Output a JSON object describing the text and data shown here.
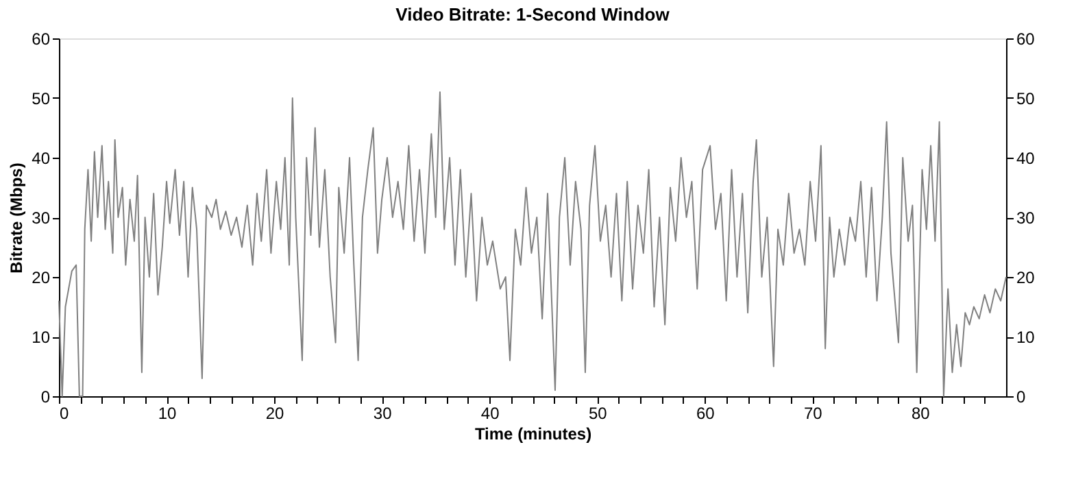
{
  "chart_data": {
    "type": "line",
    "title": "Video Bitrate: 1-Second Window",
    "xlabel": "Time (minutes)",
    "ylabel": "Bitrate (Mbps)",
    "xlim": [
      0,
      88
    ],
    "ylim": [
      0,
      60
    ],
    "y2lim": [
      0,
      60
    ],
    "xticks": [
      0,
      {
        "value": 2,
        "label": null
      },
      {
        "value": 4,
        "label": null
      },
      {
        "value": 6,
        "label": null
      },
      {
        "value": 8,
        "label": null
      },
      10,
      {
        "value": 12,
        "label": null
      },
      {
        "value": 14,
        "label": null
      },
      {
        "value": 16,
        "label": null
      },
      {
        "value": 18,
        "label": null
      },
      20,
      {
        "value": 22,
        "label": null
      },
      {
        "value": 24,
        "label": null
      },
      {
        "value": 26,
        "label": null
      },
      {
        "value": 28,
        "label": null
      },
      30,
      {
        "value": 32,
        "label": null
      },
      {
        "value": 34,
        "label": null
      },
      {
        "value": 36,
        "label": null
      },
      {
        "value": 38,
        "label": null
      },
      40,
      {
        "value": 42,
        "label": null
      },
      {
        "value": 44,
        "label": null
      },
      {
        "value": 46,
        "label": null
      },
      {
        "value": 48,
        "label": null
      },
      50,
      {
        "value": 52,
        "label": null
      },
      {
        "value": 54,
        "label": null
      },
      {
        "value": 56,
        "label": null
      },
      {
        "value": 58,
        "label": null
      },
      60,
      {
        "value": 62,
        "label": null
      },
      {
        "value": 64,
        "label": null
      },
      {
        "value": 66,
        "label": null
      },
      {
        "value": 68,
        "label": null
      },
      70,
      {
        "value": 72,
        "label": null
      },
      {
        "value": 74,
        "label": null
      },
      {
        "value": 76,
        "label": null
      },
      {
        "value": 78,
        "label": null
      },
      80,
      {
        "value": 82,
        "label": null
      },
      {
        "value": 84,
        "label": null
      },
      {
        "value": 86,
        "label": null
      }
    ],
    "yticks": [
      0,
      10,
      20,
      30,
      40,
      50,
      60
    ],
    "y2ticks": [
      0,
      10,
      20,
      30,
      40,
      50,
      60
    ],
    "grid": false,
    "legend": false,
    "marker": "none",
    "line_style": "solid",
    "series": [
      {
        "color": "#808080",
        "x": [
          0,
          0.3,
          0.6,
          0.9,
          1.2,
          1.6,
          1.9,
          2.2,
          2.4,
          2.7,
          3.0,
          3.3,
          3.6,
          4.0,
          4.3,
          4.6,
          5.0,
          5.2,
          5.5,
          5.9,
          6.2,
          6.6,
          7.0,
          7.3,
          7.7,
          8.0,
          8.4,
          8.8,
          9.2,
          9.6,
          10.0,
          10.3,
          10.8,
          11.2,
          11.6,
          12.0,
          12.4,
          12.8,
          13.3,
          13.7,
          14.2,
          14.6,
          15.0,
          15.5,
          16.0,
          16.5,
          17.0,
          17.5,
          18.0,
          18.4,
          18.8,
          19.3,
          19.7,
          20.2,
          20.6,
          21.0,
          21.4,
          21.7,
          22.0,
          22.6,
          23.0,
          23.4,
          23.8,
          24.2,
          24.7,
          25.2,
          25.7,
          26.0,
          26.5,
          27.0,
          27.4,
          27.8,
          28.2,
          28.7,
          29.2,
          29.6,
          30.0,
          30.5,
          31.0,
          31.5,
          32.0,
          32.5,
          33.0,
          33.5,
          34.0,
          34.6,
          35.0,
          35.4,
          35.8,
          36.3,
          36.8,
          37.3,
          37.8,
          38.3,
          38.8,
          39.3,
          39.8,
          40.3,
          41.0,
          41.5,
          41.9,
          42.4,
          42.9,
          43.4,
          43.9,
          44.4,
          44.9,
          45.4,
          46.1,
          46.5,
          47.0,
          47.5,
          48.0,
          48.5,
          48.9,
          49.3,
          49.8,
          50.3,
          50.8,
          51.3,
          51.8,
          52.3,
          52.8,
          53.3,
          53.8,
          54.3,
          54.8,
          55.3,
          55.8,
          56.3,
          56.8,
          57.3,
          57.8,
          58.3,
          58.8,
          59.3,
          59.8,
          60.5,
          61.0,
          61.5,
          62.0,
          62.5,
          63.0,
          63.5,
          64.0,
          64.5,
          64.8,
          65.3,
          65.8,
          66.4,
          66.8,
          67.3,
          67.8,
          68.3,
          68.8,
          69.3,
          69.8,
          70.3,
          70.8,
          71.2,
          71.6,
          72.0,
          72.5,
          73.0,
          73.5,
          74.0,
          74.5,
          75.0,
          75.5,
          76.0,
          76.5,
          76.9,
          77.3,
          78.0,
          78.4,
          78.9,
          79.3,
          79.7,
          80.2,
          80.6,
          81.0,
          81.4,
          81.8,
          82.2,
          82.6,
          83.0,
          83.4,
          83.8,
          84.2,
          84.6,
          85.0,
          85.5,
          86.0,
          86.5,
          87.0,
          87.5,
          88.0
        ],
        "values": [
          16,
          0,
          15,
          18,
          21,
          22,
          0,
          0,
          28,
          38,
          26,
          41,
          30,
          42,
          28,
          36,
          24,
          43,
          30,
          35,
          22,
          33,
          26,
          37,
          4,
          30,
          20,
          34,
          17,
          25,
          36,
          29,
          38,
          27,
          36,
          20,
          35,
          28,
          3,
          32,
          30,
          33,
          28,
          31,
          27,
          30,
          25,
          32,
          22,
          34,
          26,
          38,
          24,
          36,
          28,
          40,
          22,
          50,
          30,
          6,
          40,
          27,
          45,
          25,
          38,
          20,
          9,
          35,
          24,
          40,
          22,
          6,
          30,
          38,
          45,
          24,
          33,
          40,
          30,
          36,
          28,
          42,
          26,
          38,
          24,
          44,
          30,
          51,
          28,
          40,
          22,
          38,
          20,
          34,
          16,
          30,
          22,
          26,
          18,
          20,
          6,
          28,
          22,
          35,
          24,
          30,
          13,
          34,
          1,
          30,
          40,
          22,
          36,
          28,
          4,
          32,
          42,
          26,
          32,
          20,
          34,
          16,
          36,
          18,
          32,
          24,
          38,
          15,
          30,
          12,
          35,
          26,
          40,
          30,
          36,
          18,
          38,
          42,
          28,
          34,
          16,
          38,
          20,
          34,
          14,
          36,
          43,
          20,
          30,
          5,
          28,
          22,
          34,
          24,
          28,
          22,
          36,
          26,
          42,
          8,
          30,
          20,
          28,
          22,
          30,
          26,
          36,
          20,
          35,
          16,
          30,
          46,
          24,
          9,
          40,
          26,
          32,
          4,
          38,
          28,
          42,
          26,
          46,
          0,
          18,
          4,
          12,
          5,
          14,
          12,
          15,
          13,
          17,
          14,
          18,
          16,
          20
        ]
      }
    ]
  }
}
